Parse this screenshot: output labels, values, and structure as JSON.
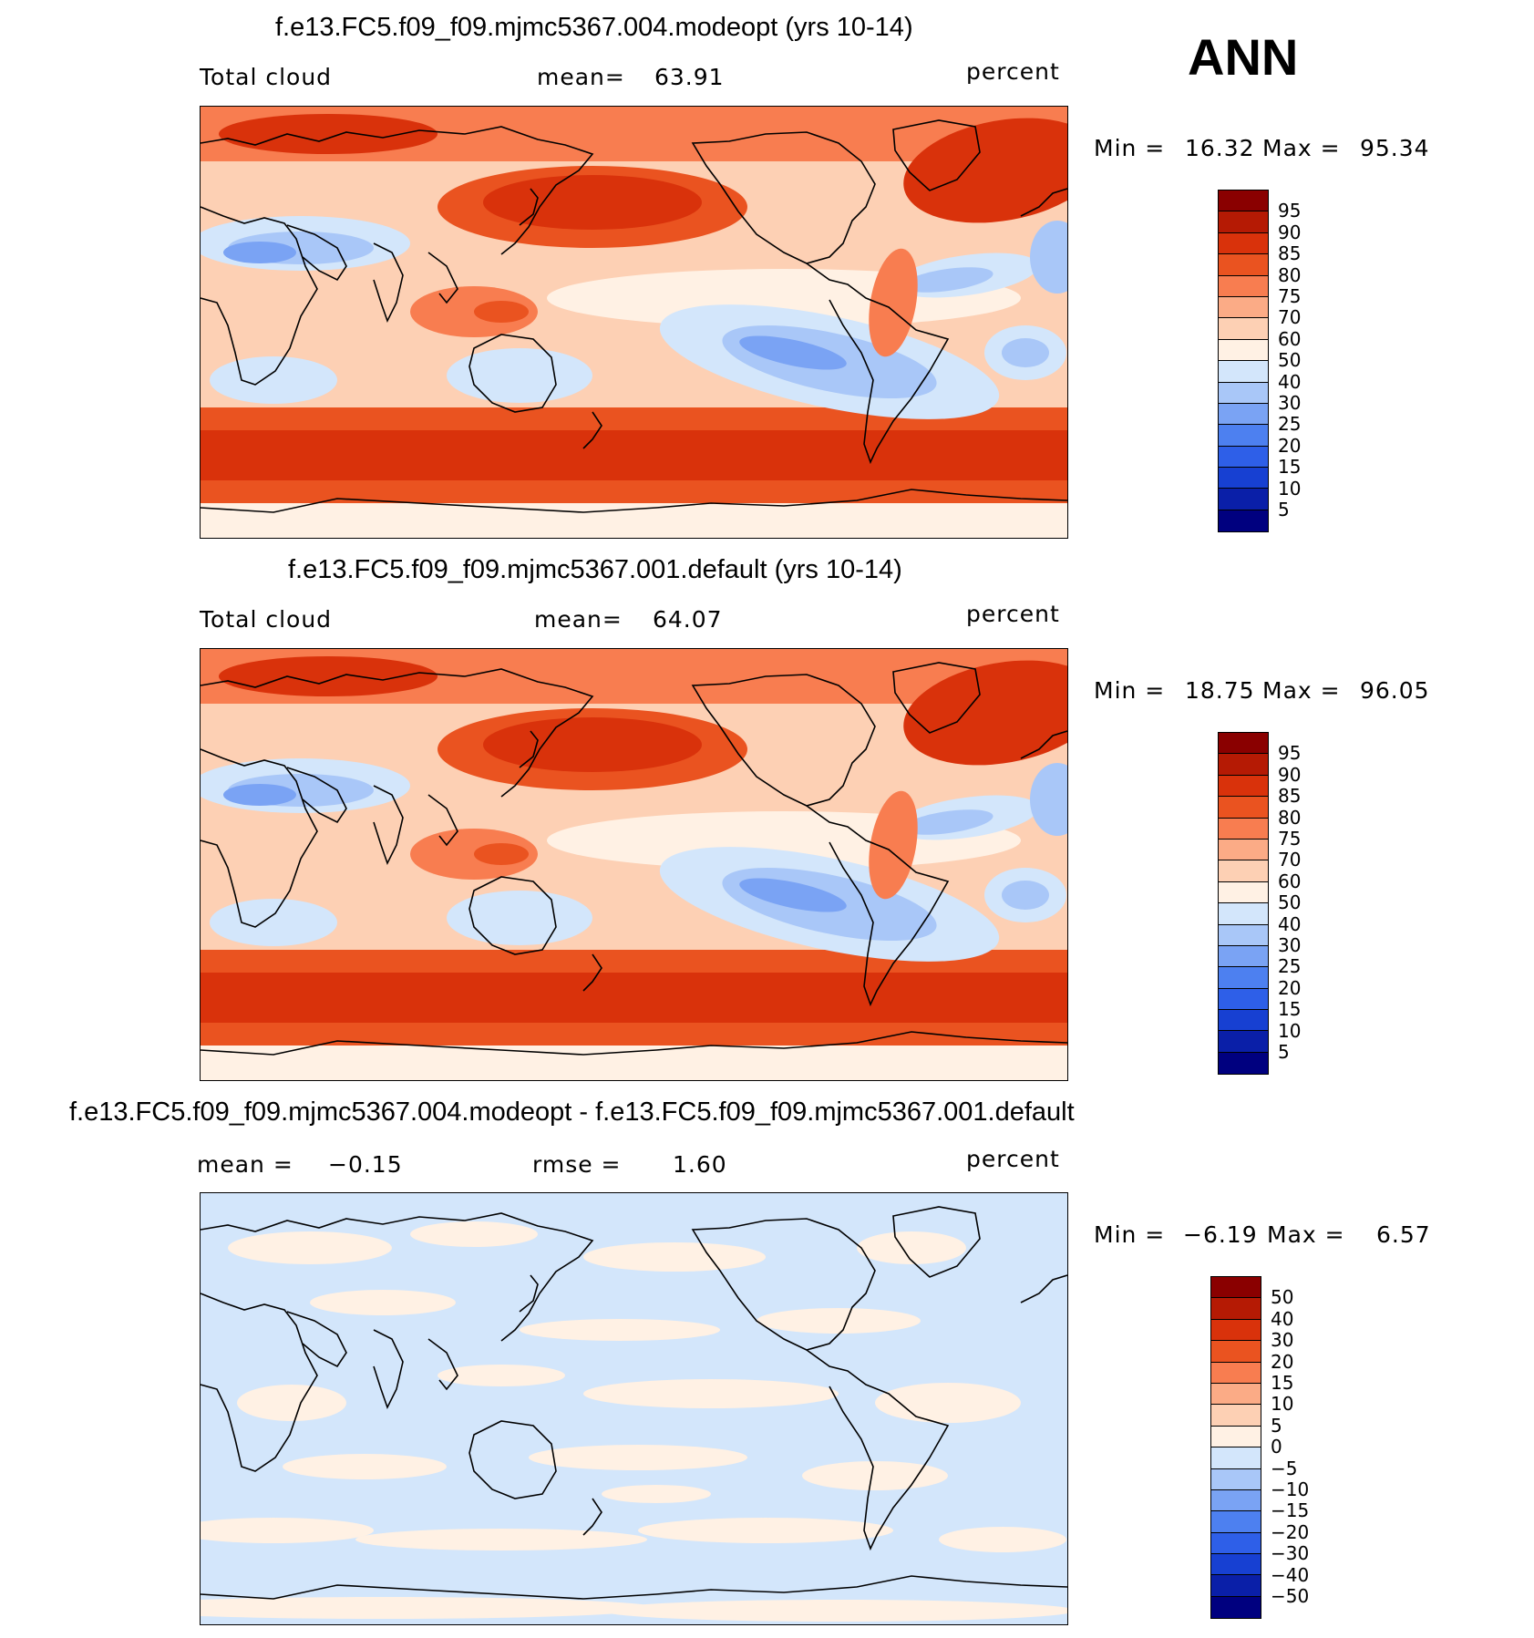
{
  "season": "ANN",
  "palette": {
    "abs": [
      "#00007f",
      "#0a1fa8",
      "#1740d2",
      "#2e5fe8",
      "#4d80f0",
      "#7aa3f4",
      "#a9c7f8",
      "#d3e6fb",
      "#fff1e4",
      "#fdd0b4",
      "#fbab86",
      "#f87d50",
      "#ea5320",
      "#d9320b",
      "#b51a04",
      "#8a0000"
    ],
    "diff": [
      "#00007f",
      "#0a1fa8",
      "#1740d2",
      "#2e5fe8",
      "#4d80f0",
      "#7aa3f4",
      "#a9c7f8",
      "#d3e6fb",
      "#fff1e4",
      "#fdd0b4",
      "#fbab86",
      "#f87d50",
      "#ea5320",
      "#d9320b",
      "#b51a04",
      "#8a0000"
    ],
    "coast": "#000000"
  },
  "panels": {
    "p1": {
      "title": "f.e13.FC5.f09_f09.mjmc5367.004.modeopt (yrs 10-14)",
      "field": "Total cloud",
      "mean_label": "mean=",
      "mean_value": "63.91",
      "units": "percent",
      "min_label": "Min =",
      "min_value": "16.32",
      "max_label": "Max =",
      "max_value": "95.34"
    },
    "p2": {
      "title": "f.e13.FC5.f09_f09.mjmc5367.001.default (yrs 10-14)",
      "field": "Total cloud",
      "mean_label": "mean=",
      "mean_value": "64.07",
      "units": "percent",
      "min_label": "Min =",
      "min_value": "18.75",
      "max_label": "Max =",
      "max_value": "96.05"
    },
    "p3": {
      "title": "f.e13.FC5.f09_f09.mjmc5367.004.modeopt - f.e13.FC5.f09_f09.mjmc5367.001.default",
      "mean_label": "mean =",
      "mean_value": "−0.15",
      "rmse_label": "rmse =",
      "rmse_value": "1.60",
      "units": "percent",
      "min_label": "Min =",
      "min_value": "−6.19",
      "max_label": "Max =",
      "max_value": "6.57"
    }
  },
  "chart_data": [
    {
      "type": "heatmap",
      "title": "f.e13.FC5.f09_f09.mjmc5367.004.modeopt (yrs 10-14)",
      "variable": "Total cloud",
      "units": "percent",
      "mean": 63.91,
      "min": 16.32,
      "max": 95.34,
      "colorbar_levels": [
        "95",
        "90",
        "85",
        "80",
        "75",
        "70",
        "60",
        "50",
        "40",
        "30",
        "25",
        "20",
        "15",
        "10",
        "5"
      ],
      "longitude_center": 180
    },
    {
      "type": "heatmap",
      "title": "f.e13.FC5.f09_f09.mjmc5367.001.default (yrs 10-14)",
      "variable": "Total cloud",
      "units": "percent",
      "mean": 64.07,
      "min": 18.75,
      "max": 96.05,
      "colorbar_levels": [
        "95",
        "90",
        "85",
        "80",
        "75",
        "70",
        "60",
        "50",
        "40",
        "30",
        "25",
        "20",
        "15",
        "10",
        "5"
      ],
      "longitude_center": 180
    },
    {
      "type": "heatmap",
      "title": "f.e13.FC5.f09_f09.mjmc5367.004.modeopt - f.e13.FC5.f09_f09.mjmc5367.001.default",
      "units": "percent",
      "mean": -0.15,
      "rmse": 1.6,
      "min": -6.19,
      "max": 6.57,
      "colorbar_levels": [
        "50",
        "40",
        "30",
        "20",
        "15",
        "10",
        "5",
        "0",
        "−5",
        "−10",
        "−15",
        "−20",
        "−30",
        "−40",
        "−50"
      ],
      "longitude_center": 180
    }
  ]
}
